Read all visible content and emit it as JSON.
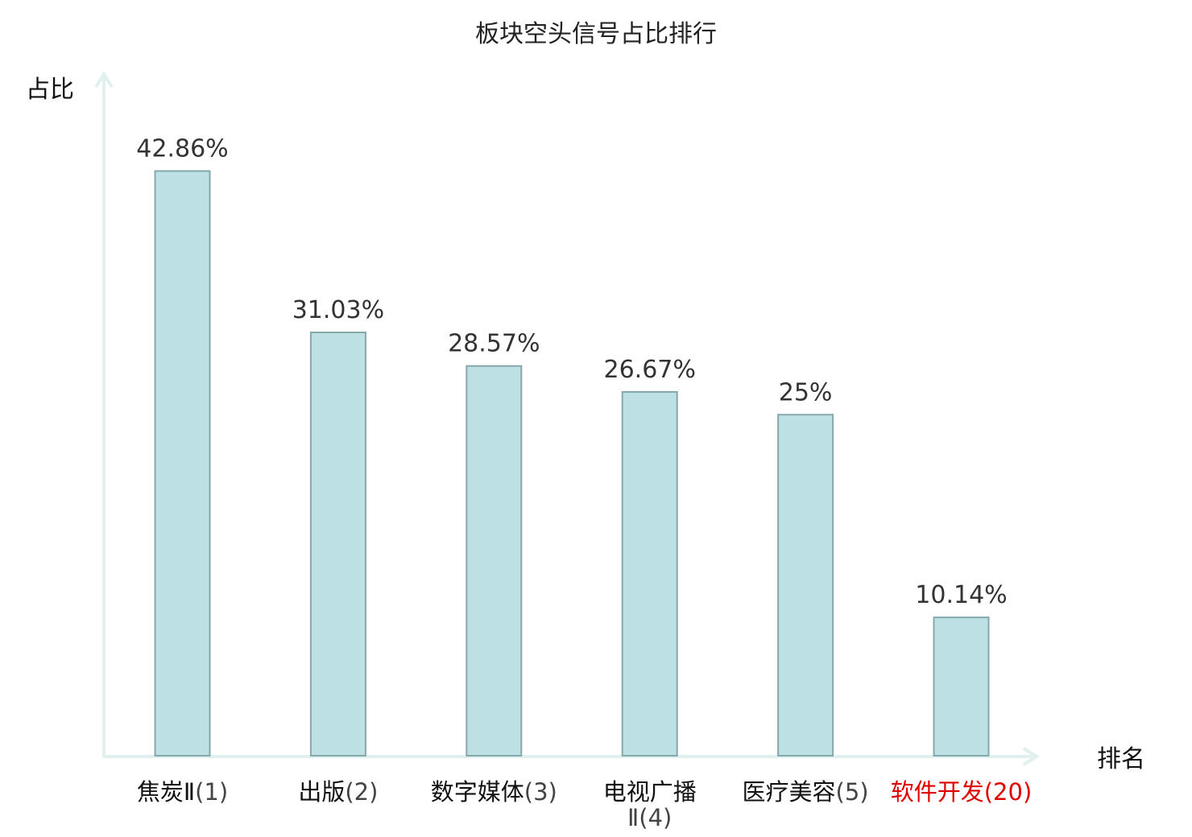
{
  "chart_data": {
    "type": "bar",
    "title": "板块空头信号占比排行",
    "xlabel": "排名",
    "ylabel": "占比",
    "unit": "%",
    "ylim": [
      0,
      45
    ],
    "grid": false,
    "categories": [
      {
        "name": "焦炭Ⅱ",
        "rank": "(1)",
        "wrap": false,
        "highlight": false
      },
      {
        "name": "出版",
        "rank": "(2)",
        "wrap": false,
        "highlight": false
      },
      {
        "name": "数字媒体",
        "rank": "(3)",
        "wrap": false,
        "highlight": false
      },
      {
        "name": "电视广播",
        "rank": "Ⅱ(4)",
        "wrap": true,
        "highlight": false
      },
      {
        "name": "医疗美容",
        "rank": "(5)",
        "wrap": false,
        "highlight": false
      },
      {
        "name": "软件开发",
        "rank": "(20)",
        "wrap": false,
        "highlight": true
      }
    ],
    "values": [
      42.86,
      31.03,
      28.57,
      26.67,
      25,
      10.14
    ],
    "value_labels": [
      "42.86%",
      "31.03%",
      "28.57%",
      "26.67%",
      "25%",
      "10.14%"
    ]
  },
  "colors": {
    "bar_fill": "#bce0e3",
    "bar_stroke": "#86a8ab",
    "axis": "#dff0ee",
    "highlight": "#e00000"
  }
}
